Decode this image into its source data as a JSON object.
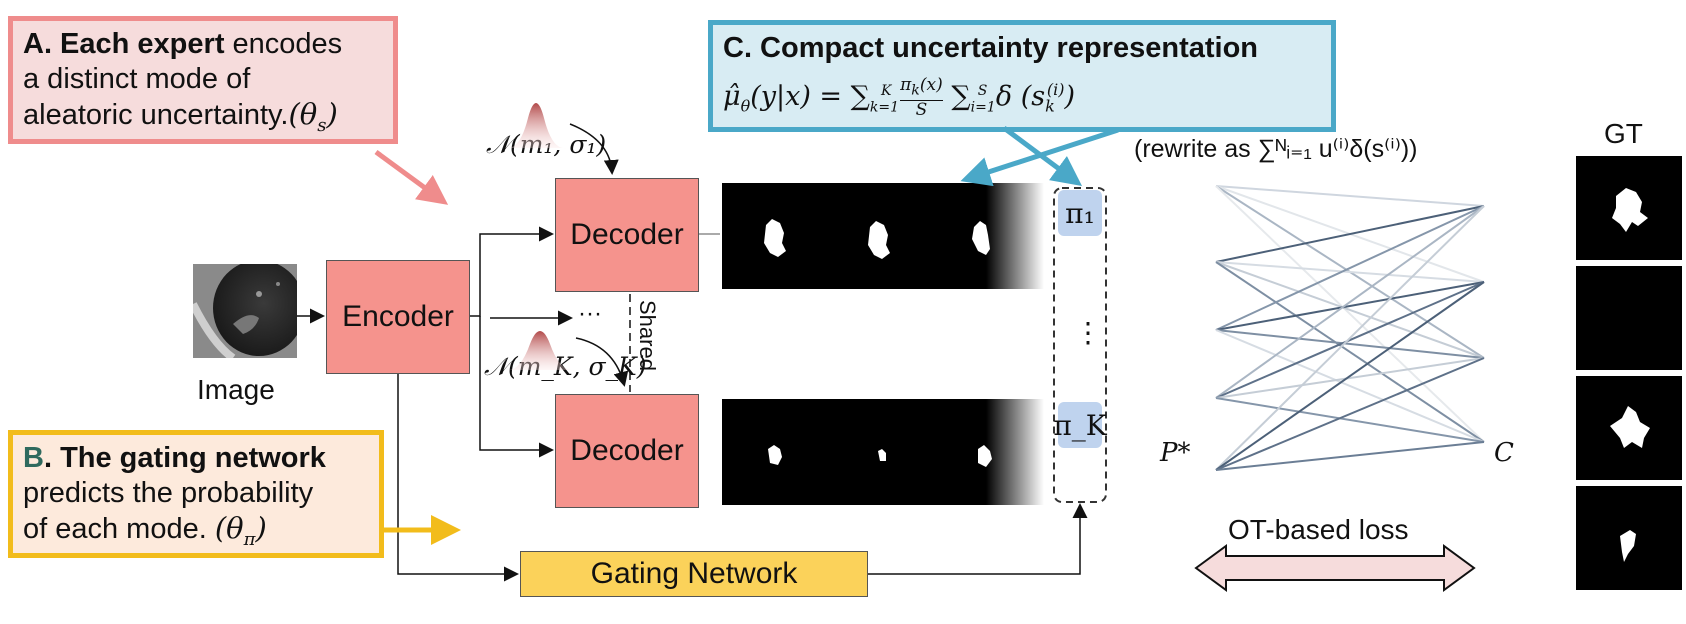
{
  "callout_a": {
    "bold": "A. Each expert",
    "text1": " encodes",
    "text2": "a distinct mode of",
    "text3": "aleatoric uncertainty.",
    "param": "(θ",
    "param_sub": "s",
    "param_end": ")"
  },
  "callout_b": {
    "letter": "B",
    "bold": ". The gating network",
    "text1": "predicts the probability",
    "text2": "of each mode. ",
    "param": "(θ",
    "param_sub": "π",
    "param_end": ")"
  },
  "callout_c": {
    "title": "C. Compact uncertainty representation",
    "formula": "μ̂ θ(y|x) = ∑ K k=1  πk(x)/S  ∑ S i=1 δ ( s k (i) )"
  },
  "rewrite_note": "(rewrite as ∑ᴺᵢ₌₁ u⁽ⁱ⁾δ(s⁽ⁱ⁾))",
  "image_label": "Image",
  "encoder_label": "Encoder",
  "decoder_label": "Decoder",
  "shared_label": "Shared",
  "gating_label": "Gating Network",
  "dist_top": "𝒩(m₁, σ₁)",
  "dist_bottom": "𝒩(m_K, σ_K)",
  "ellipsis": "···",
  "pi_top": "π₁",
  "pi_bottom": "π_K",
  "pi_dots": "⋮",
  "p_star": "P*",
  "c_label": "C",
  "ot_label": "OT-based loss",
  "gt_label": "GT",
  "colors": {
    "block": "#f5938d",
    "gating": "#fbd25a",
    "callout_a_border": "#ef8c8c",
    "callout_b_border": "#f2bc1b",
    "callout_c_border": "#4aa8c8",
    "pi_fill": "#bfd3ee"
  }
}
